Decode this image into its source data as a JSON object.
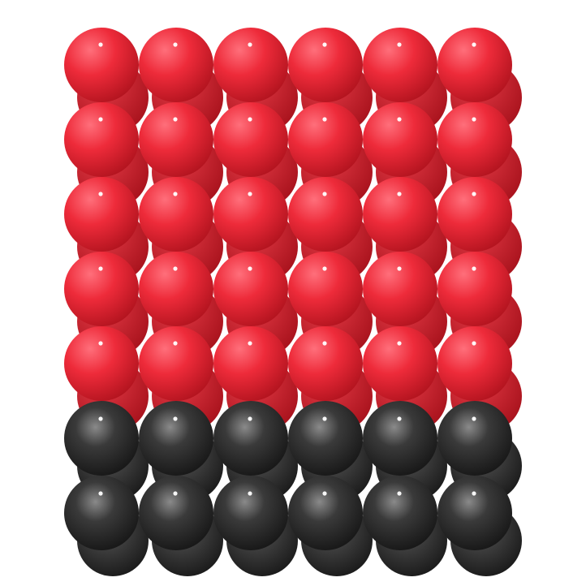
{
  "scene": {
    "background": "#ffffff",
    "grid": {
      "columns": 6,
      "rows": 7
    },
    "layers": [
      {
        "name": "top-layer",
        "rows": 5,
        "color": "#ee2b3a",
        "shade": "#b3141f"
      },
      {
        "name": "bottom-layer",
        "rows": 2,
        "color": "#3a3a3a",
        "shade": "#111111"
      }
    ]
  }
}
